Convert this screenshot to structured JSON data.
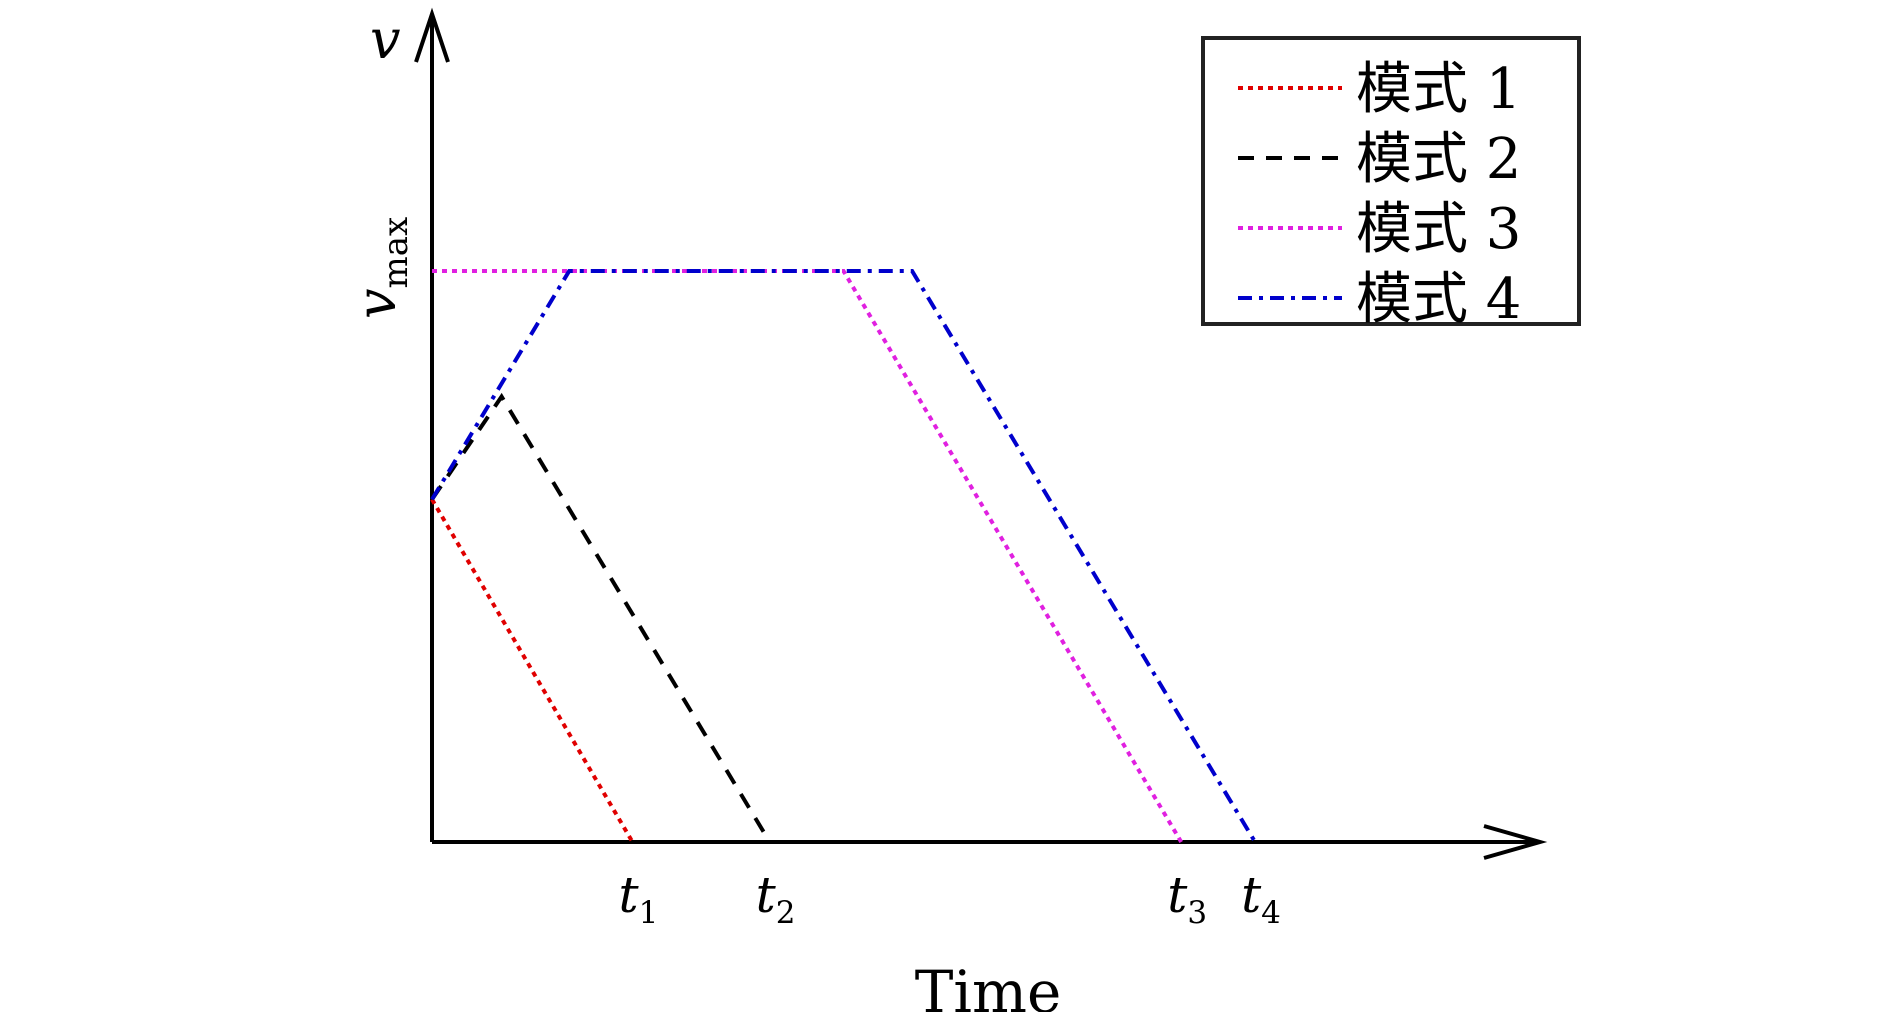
{
  "chart_data": {
    "type": "line",
    "title": "",
    "xlabel": "Time",
    "ylabel": "v",
    "y_tick_labels": [
      {
        "main": "v",
        "sub": "max"
      }
    ],
    "x_tick_labels": [
      {
        "main": "t",
        "sub": "1"
      },
      {
        "main": "t",
        "sub": "2"
      },
      {
        "main": "t",
        "sub": "3"
      },
      {
        "main": "t",
        "sub": "4"
      }
    ],
    "x_ticks": [
      0.19,
      0.32,
      0.71,
      0.78
    ],
    "xlim": [
      0,
      1.05
    ],
    "ylim": [
      0,
      1.45
    ],
    "grid": false,
    "legend_position": "top-right",
    "series": [
      {
        "name": "模式 1",
        "color": "#e00000",
        "dash": "dotted",
        "x": [
          0,
          0.19
        ],
        "y": [
          0.6,
          0
        ]
      },
      {
        "name": "模式 2",
        "color": "#000000",
        "dash": "dashed",
        "x": [
          0,
          0.066,
          0.32
        ],
        "y": [
          0.6,
          0.78,
          0
        ]
      },
      {
        "name": "模式 3",
        "color": "#e020e0",
        "dash": "dotted",
        "x": [
          0,
          0.39,
          0.71
        ],
        "y": [
          1,
          1,
          0
        ]
      },
      {
        "name": "模式 4",
        "color": "#0000cc",
        "dash": "dashdot",
        "x": [
          0,
          0.13,
          0.455,
          0.78
        ],
        "y": [
          0.6,
          1,
          1,
          0
        ]
      }
    ]
  }
}
